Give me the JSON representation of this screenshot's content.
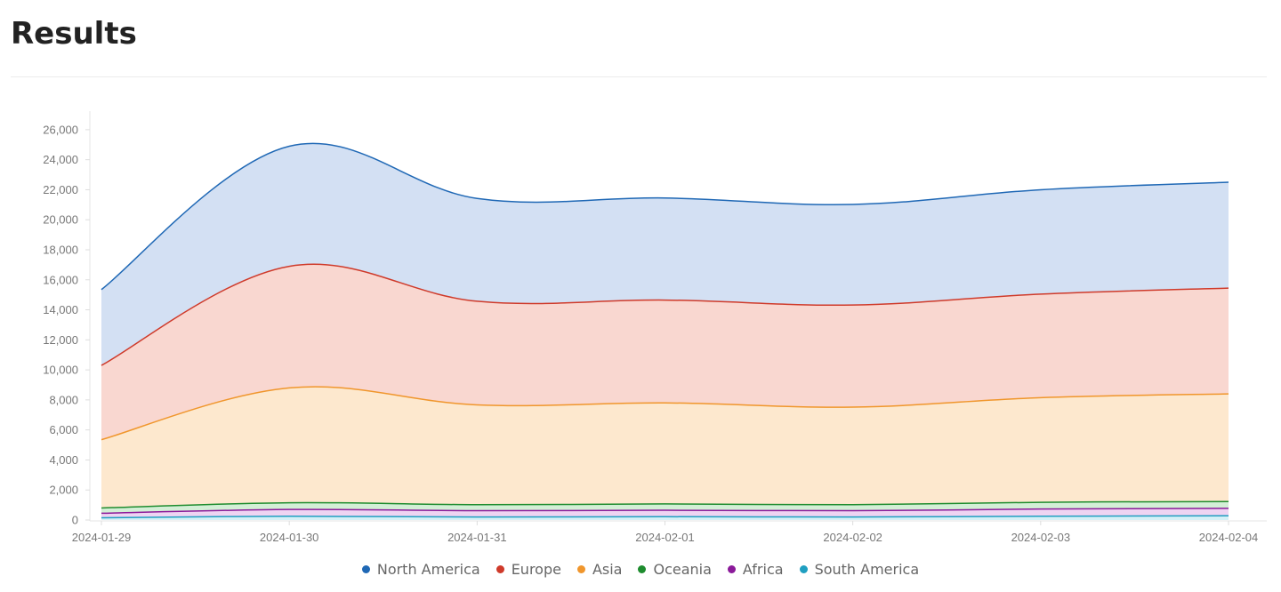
{
  "page": {
    "title": "Results"
  },
  "chart_data": {
    "type": "area",
    "stacked": true,
    "x": [
      "2024-01-29",
      "2024-01-30",
      "2024-01-31",
      "2024-02-01",
      "2024-02-02",
      "2024-02-03",
      "2024-02-04"
    ],
    "ylim": [
      0,
      27000
    ],
    "yticks": [
      0,
      2000,
      4000,
      6000,
      8000,
      10000,
      12000,
      14000,
      16000,
      18000,
      20000,
      22000,
      24000,
      26000
    ],
    "grid": false,
    "legend_position": "bottom",
    "series": [
      {
        "name": "South America",
        "color": "#1f9fc1",
        "fill": "#d6f1f7",
        "values": [
          150,
          250,
          200,
          220,
          200,
          250,
          280
        ]
      },
      {
        "name": "Africa",
        "color": "#8b1a9a",
        "fill": "#eed4f2",
        "values": [
          300,
          450,
          420,
          430,
          420,
          480,
          500
        ]
      },
      {
        "name": "Oceania",
        "color": "#1e8c2e",
        "fill": "#d3efd6",
        "values": [
          350,
          450,
          400,
          420,
          400,
          450,
          450
        ]
      },
      {
        "name": "Asia",
        "color": "#f0962c",
        "fill": "#fde8ce",
        "values": [
          4550,
          7650,
          6650,
          6730,
          6500,
          6970,
          7170
        ]
      },
      {
        "name": "Europe",
        "color": "#cf3a2a",
        "fill": "#f9d7d0",
        "values": [
          4950,
          8100,
          6900,
          6850,
          6800,
          6900,
          7050
        ]
      },
      {
        "name": "North America",
        "color": "#1f68b5",
        "fill": "#d3e0f3",
        "values": [
          5050,
          8000,
          6850,
          6800,
          6700,
          6950,
          7050
        ]
      }
    ]
  },
  "legend": {
    "items": [
      {
        "label": "North America",
        "color": "#1f68b5"
      },
      {
        "label": "Europe",
        "color": "#cf3a2a"
      },
      {
        "label": "Asia",
        "color": "#f0962c"
      },
      {
        "label": "Oceania",
        "color": "#1e8c2e"
      },
      {
        "label": "Africa",
        "color": "#8b1a9a"
      },
      {
        "label": "South America",
        "color": "#1f9fc1"
      }
    ]
  }
}
